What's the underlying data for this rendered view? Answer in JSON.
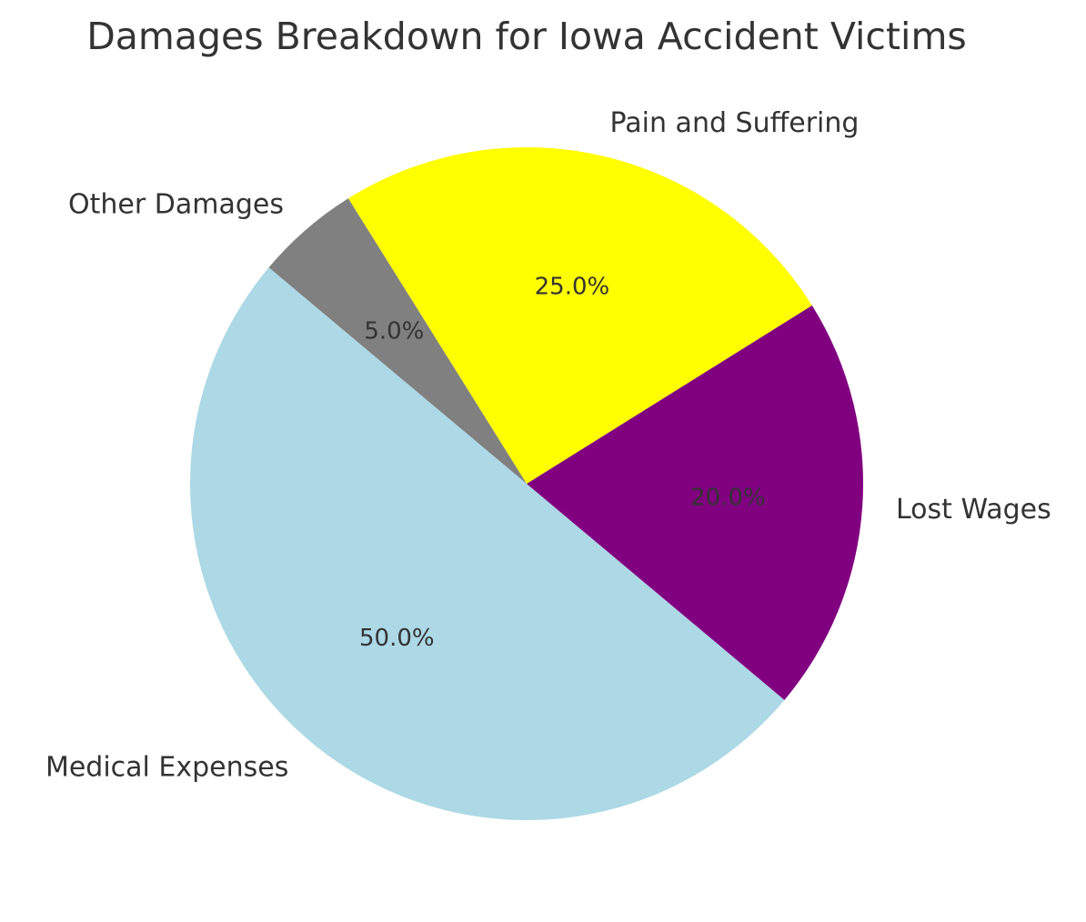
{
  "chart_data": {
    "type": "pie",
    "title": "Damages Breakdown for Iowa Accident Victims",
    "slices": [
      {
        "label": "Medical Expenses",
        "value": 50,
        "pct_label": "50.0%",
        "color": "#ADD8E6"
      },
      {
        "label": "Lost Wages",
        "value": 20,
        "pct_label": "20.0%",
        "color": "#800080"
      },
      {
        "label": "Pain and Suffering",
        "value": 25,
        "pct_label": "25.0%",
        "color": "#FFFF00"
      },
      {
        "label": "Other Damages",
        "value": 5,
        "pct_label": "5.0%",
        "color": "#808080"
      }
    ],
    "start_angle_deg": 140,
    "direction": "counterclockwise",
    "legend": "none"
  }
}
